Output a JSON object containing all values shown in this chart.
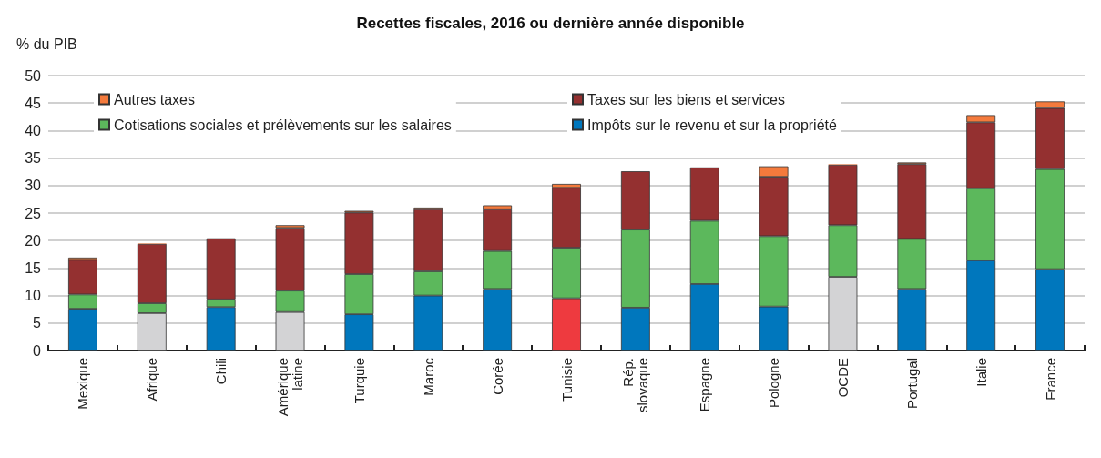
{
  "chart_data": {
    "type": "bar",
    "stacked": true,
    "title": "Recettes fiscales, 2016 ou dernière année disponible",
    "ylabel": "% du PIB",
    "categories": [
      "Mexique",
      "Afrique",
      "Chili",
      "Amérique latine",
      "Turquie",
      "Maroc",
      "Corée",
      "Tunisie",
      "Rép. slovaque",
      "Espagne",
      "Pologne",
      "OCDE",
      "Portugal",
      "Italie",
      "France"
    ],
    "series": [
      {
        "name": "Impôts sur le revenu et sur la propriété",
        "color": "#0077bd",
        "colors": [
          "#0077bd",
          "#d3d3d5",
          "#0077bd",
          "#d3d3d5",
          "#0077bd",
          "#0077bd",
          "#0077bd",
          "#ee3a3f",
          "#0077bd",
          "#0077bd",
          "#0077bd",
          "#d3d3d5",
          "#0077bd",
          "#0077bd",
          "#0077bd"
        ],
        "values": [
          7.6,
          6.8,
          7.9,
          7.0,
          6.6,
          10.0,
          11.2,
          9.5,
          7.8,
          12.1,
          8.0,
          13.4,
          11.2,
          16.4,
          14.8
        ]
      },
      {
        "name": "Cotisations sociales et prélèvements sur les salaires",
        "color": "#5cb85c",
        "values": [
          2.6,
          1.8,
          1.4,
          3.9,
          7.3,
          4.4,
          6.9,
          9.2,
          14.2,
          11.5,
          12.8,
          9.4,
          9.1,
          13.1,
          18.2
        ]
      },
      {
        "name": "Taxes sur les biens et services",
        "color": "#943030",
        "values": [
          6.3,
          10.8,
          11.1,
          11.4,
          11.2,
          11.3,
          7.6,
          10.9,
          10.6,
          9.7,
          10.8,
          11.0,
          13.6,
          12.0,
          11.1
        ]
      },
      {
        "name": "Autres taxes",
        "color": "#f47a3c",
        "values": [
          0.4,
          0.1,
          0,
          0.5,
          0.3,
          0.3,
          0.7,
          0.7,
          0,
          0,
          1.9,
          0.1,
          0.3,
          1.3,
          1.2
        ]
      }
    ],
    "ylim": [
      0,
      50
    ],
    "yticks": [
      0,
      5,
      10,
      15,
      20,
      25,
      30,
      35,
      40,
      45,
      50
    ],
    "grid": "y",
    "legend": "top left"
  }
}
